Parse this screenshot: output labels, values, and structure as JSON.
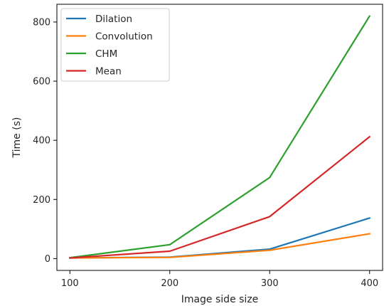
{
  "chart_data": {
    "type": "line",
    "title": "",
    "xlabel": "Image side size",
    "ylabel": "Time (s)",
    "x": [
      100,
      200,
      300,
      400
    ],
    "xlim": [
      87,
      413
    ],
    "ylim": [
      -40,
      860
    ],
    "xticks": [
      100,
      200,
      300,
      400
    ],
    "yticks": [
      0,
      200,
      400,
      600,
      800
    ],
    "grid": false,
    "legend_position": "top-left",
    "series": [
      {
        "name": "Dilation",
        "color": "#1f77b4",
        "values": [
          2,
          5,
          32,
          137
        ]
      },
      {
        "name": "Convolution",
        "color": "#ff7f0e",
        "values": [
          2,
          4,
          28,
          84
        ]
      },
      {
        "name": "CHM",
        "color": "#2ca02c",
        "values": [
          3,
          47,
          274,
          820
        ]
      },
      {
        "name": "Mean",
        "color": "#d62728",
        "values": [
          2,
          25,
          142,
          412
        ]
      }
    ]
  }
}
